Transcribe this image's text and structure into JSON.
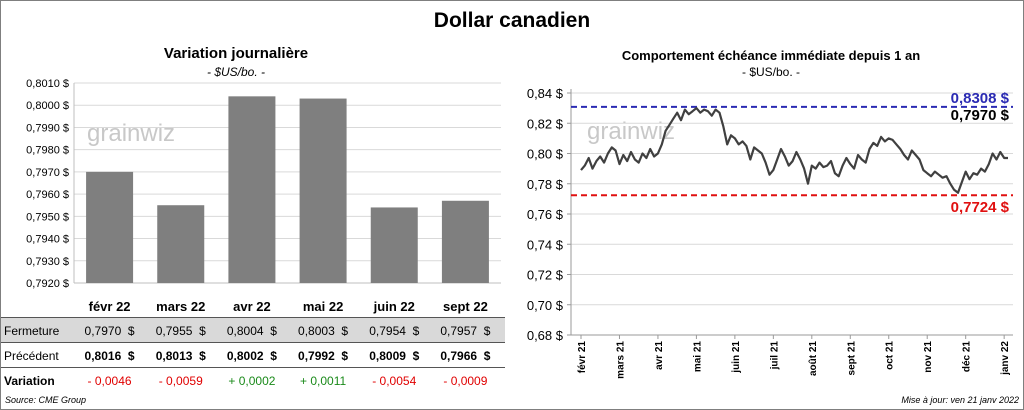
{
  "header": {
    "title": "Dollar canadien"
  },
  "footer": {
    "source": "Source: CME Group",
    "updated": "Mise à jour: ven 21 janv 2022"
  },
  "colors": {
    "bar": "#7f7f7f",
    "line": "#404040",
    "high": "#2b2bb3",
    "low": "#e01010",
    "positive": "#1a8a1a",
    "negative": "#e00000"
  },
  "table": {
    "rows": [
      {
        "label": "Fermeture",
        "cells": [
          "0,7970  $",
          "0,7955  $",
          "0,8004  $",
          "0,8003  $",
          "0,7954  $",
          "0,7957  $"
        ]
      },
      {
        "label": "Précédent",
        "cells": [
          "0,8016  $",
          "0,8013  $",
          "0,8002  $",
          "0,7992  $",
          "0,8009  $",
          "0,7966  $"
        ]
      },
      {
        "label": "Variation",
        "cells": [
          "- 0,0046",
          "- 0,0059",
          "+ 0,0002",
          "+ 0,0011",
          "- 0,0054",
          "- 0,0009"
        ]
      }
    ]
  },
  "chart_data": [
    {
      "type": "bar",
      "title": "Variation  journalière",
      "subtitle": "- $US/bo. -",
      "watermark": "grainwiz",
      "categories": [
        "févr 22",
        "mars 22",
        "avr 22",
        "mai 22",
        "juin 22",
        "sept 22"
      ],
      "values": [
        0.797,
        0.7955,
        0.8004,
        0.8003,
        0.7954,
        0.7957
      ],
      "ylim": [
        0.792,
        0.801
      ],
      "yticks": [
        "0,7920 $",
        "0,7930 $",
        "0,7940 $",
        "0,7950 $",
        "0,7960 $",
        "0,7970 $",
        "0,7980 $",
        "0,7990 $",
        "0,8000 $",
        "0,8010 $"
      ],
      "grid": true
    },
    {
      "type": "line",
      "title": "Comportement échéance immédiate depuis 1 an",
      "subtitle": "- $US/bo. -",
      "watermark": "grainwiz",
      "ylim": [
        0.68,
        0.84
      ],
      "yticks": [
        "0,68 $",
        "0,70 $",
        "0,72 $",
        "0,74 $",
        "0,76 $",
        "0,78 $",
        "0,80 $",
        "0,82 $",
        "0,84 $"
      ],
      "xticks": [
        "févr 21",
        "mars 21",
        "avr 21",
        "mai 21",
        "juin 21",
        "juil 21",
        "août 21",
        "sept 21",
        "oct 21",
        "nov 21",
        "déc 21",
        "janv 22"
      ],
      "high": {
        "value": 0.8308,
        "label": "0,8308 $"
      },
      "low": {
        "value": 0.7724,
        "label": "0,7724 $"
      },
      "last": {
        "value": 0.797,
        "label": "0,7970 $"
      },
      "series": [
        {
          "x": [
            0,
            0.1,
            0.2,
            0.3,
            0.4,
            0.5,
            0.6,
            0.7,
            0.8,
            0.9,
            1.0,
            1.1,
            1.2,
            1.3,
            1.4,
            1.5,
            1.6,
            1.7,
            1.8,
            1.9,
            2.0,
            2.1,
            2.2,
            2.3,
            2.4,
            2.5,
            2.6,
            2.7,
            2.8,
            2.9,
            3.0,
            3.1,
            3.2,
            3.3,
            3.4,
            3.5,
            3.6,
            3.7,
            3.8,
            3.9,
            4.0,
            4.1,
            4.2,
            4.3,
            4.4,
            4.5,
            4.6,
            4.7,
            4.8,
            4.9,
            5.0,
            5.1,
            5.2,
            5.3,
            5.4,
            5.5,
            5.6,
            5.7,
            5.8,
            5.9,
            6.0,
            6.1,
            6.2,
            6.3,
            6.4,
            6.5,
            6.6,
            6.7,
            6.8,
            6.9,
            7.0,
            7.1,
            7.2,
            7.3,
            7.4,
            7.5,
            7.6,
            7.7,
            7.8,
            7.9,
            8.0,
            8.1,
            8.2,
            8.3,
            8.4,
            8.5,
            8.6,
            8.7,
            8.8,
            8.9,
            9.0,
            9.1,
            9.2,
            9.3,
            9.4,
            9.5,
            9.6,
            9.7,
            9.8,
            9.9,
            10.0,
            10.1,
            10.2,
            10.3,
            10.4,
            10.5,
            10.6,
            10.7,
            10.8,
            10.9,
            11.0,
            11.1
          ],
          "y": [
            0.789,
            0.792,
            0.797,
            0.79,
            0.795,
            0.798,
            0.794,
            0.8,
            0.804,
            0.802,
            0.793,
            0.799,
            0.795,
            0.801,
            0.796,
            0.794,
            0.8,
            0.797,
            0.803,
            0.798,
            0.8,
            0.806,
            0.815,
            0.819,
            0.823,
            0.827,
            0.822,
            0.829,
            0.826,
            0.828,
            0.83,
            0.827,
            0.829,
            0.828,
            0.825,
            0.829,
            0.827,
            0.818,
            0.806,
            0.812,
            0.81,
            0.806,
            0.808,
            0.805,
            0.796,
            0.804,
            0.802,
            0.8,
            0.794,
            0.786,
            0.789,
            0.796,
            0.803,
            0.798,
            0.792,
            0.795,
            0.801,
            0.796,
            0.79,
            0.78,
            0.792,
            0.79,
            0.794,
            0.791,
            0.792,
            0.795,
            0.787,
            0.785,
            0.792,
            0.797,
            0.793,
            0.79,
            0.799,
            0.796,
            0.794,
            0.803,
            0.807,
            0.805,
            0.811,
            0.808,
            0.81,
            0.809,
            0.806,
            0.803,
            0.799,
            0.796,
            0.802,
            0.799,
            0.796,
            0.789,
            0.787,
            0.785,
            0.788,
            0.786,
            0.784,
            0.785,
            0.78,
            0.776,
            0.774,
            0.781,
            0.788,
            0.783,
            0.787,
            0.786,
            0.79,
            0.788,
            0.793,
            0.8,
            0.796,
            0.801,
            0.797,
            0.797
          ]
        }
      ]
    }
  ]
}
